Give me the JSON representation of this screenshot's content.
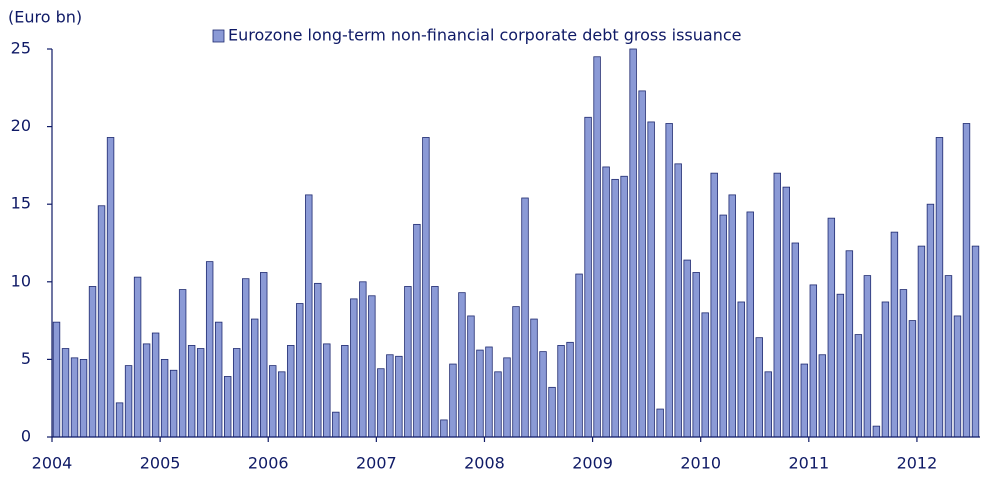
{
  "chart_data": {
    "type": "bar",
    "y_label": "(Euro bn)",
    "categories": [
      "2004",
      null,
      null,
      null,
      null,
      null,
      null,
      null,
      null,
      null,
      null,
      null,
      "2005",
      null,
      null,
      null,
      null,
      null,
      null,
      null,
      null,
      null,
      null,
      null,
      "2006",
      null,
      null,
      null,
      null,
      null,
      null,
      null,
      null,
      null,
      null,
      null,
      "2007",
      null,
      null,
      null,
      null,
      null,
      null,
      null,
      null,
      null,
      null,
      null,
      "2008",
      null,
      null,
      null,
      null,
      null,
      null,
      null,
      null,
      null,
      null,
      null,
      "2009",
      null,
      null,
      null,
      null,
      null,
      null,
      null,
      null,
      null,
      null,
      null,
      "2010",
      null,
      null,
      null,
      null,
      null,
      null,
      null,
      null,
      null,
      null,
      null,
      "2011",
      null,
      null,
      null,
      null,
      null,
      null,
      null,
      null,
      null,
      null,
      null,
      "2012",
      null,
      null,
      null,
      null,
      null,
      null
    ],
    "series": [
      {
        "name": "Eurozone long-term non-financial corporate debt gross issuance",
        "color": "#8b9ad6",
        "values": [
          7.4,
          5.7,
          5.1,
          5.0,
          9.7,
          14.9,
          19.3,
          2.2,
          4.6,
          10.3,
          6.0,
          6.7,
          5.0,
          4.3,
          9.5,
          5.9,
          5.7,
          11.3,
          7.4,
          3.9,
          5.7,
          10.2,
          7.6,
          10.6,
          4.6,
          4.2,
          5.9,
          8.6,
          15.6,
          9.9,
          6.0,
          1.6,
          5.9,
          8.9,
          10.0,
          9.1,
          4.4,
          5.3,
          5.2,
          9.7,
          13.7,
          19.3,
          9.7,
          1.1,
          4.7,
          9.3,
          7.8,
          5.6,
          5.8,
          4.2,
          5.1,
          8.4,
          15.4,
          7.6,
          5.5,
          3.2,
          5.9,
          6.1,
          10.5,
          20.6,
          24.5,
          17.4,
          16.6,
          16.8,
          25.0,
          22.3,
          20.3,
          1.8,
          20.2,
          17.6,
          11.4,
          10.6,
          8.0,
          17.0,
          14.3,
          15.6,
          8.7,
          14.5,
          6.4,
          4.2,
          17.0,
          16.1,
          12.5,
          4.7,
          9.8,
          5.3,
          14.1,
          9.2,
          12.0,
          6.6,
          10.4,
          0.7,
          8.7,
          13.2,
          9.5,
          7.5,
          12.3,
          15.0,
          19.3,
          10.4,
          7.8,
          20.2,
          12.3
        ]
      }
    ],
    "ylim": [
      0,
      25
    ],
    "yticks": [
      0,
      5,
      10,
      15,
      20,
      25
    ],
    "grid": false,
    "legend": "top"
  }
}
